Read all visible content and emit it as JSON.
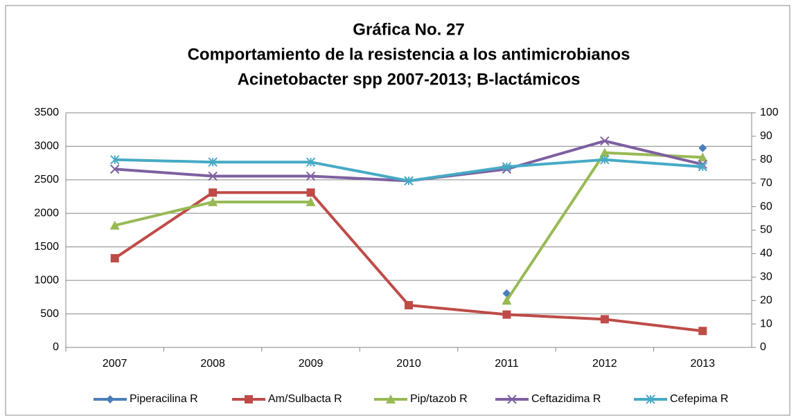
{
  "chart_data": {
    "type": "line",
    "title": [
      "Gráfica No. 27",
      "Comportamiento de la resistencia a los antimicrobianos",
      "Acinetobacter spp 2007-2013;  B-lactámicos"
    ],
    "categories": [
      "2007",
      "2008",
      "2009",
      "2010",
      "2011",
      "2012",
      "2013"
    ],
    "ylim": [
      0,
      3500
    ],
    "yticks": [
      0,
      500,
      1000,
      1500,
      2000,
      2500,
      3000,
      3500
    ],
    "y2lim": [
      0,
      100
    ],
    "y2ticks": [
      0,
      10,
      20,
      30,
      40,
      50,
      60,
      70,
      80,
      90,
      100
    ],
    "grid": true,
    "legend": "bottom",
    "series": [
      {
        "name": "Piperacilina R",
        "color": "#4a7ebb",
        "marker": "diamond",
        "axis": "y2",
        "values": [
          null,
          null,
          null,
          null,
          23,
          null,
          85
        ]
      },
      {
        "name": "Am/Sulbacta R",
        "color": "#be4b48",
        "marker": "square",
        "axis": "y2",
        "values": [
          38,
          66,
          66,
          18,
          14,
          12,
          7
        ]
      },
      {
        "name": "Pip/tazob R",
        "color": "#98b954",
        "marker": "triangle",
        "axis": "y2",
        "values": [
          52,
          62,
          62,
          null,
          20,
          83,
          81
        ]
      },
      {
        "name": "Ceftazidima R",
        "color": "#7d60a0",
        "marker": "x",
        "axis": "y2",
        "values": [
          76,
          73,
          73,
          71,
          76,
          88,
          78
        ]
      },
      {
        "name": "Cefepima R",
        "color": "#46aac5",
        "marker": "star",
        "axis": "y2",
        "values": [
          80,
          79,
          79,
          71,
          77,
          80,
          77
        ]
      }
    ]
  }
}
